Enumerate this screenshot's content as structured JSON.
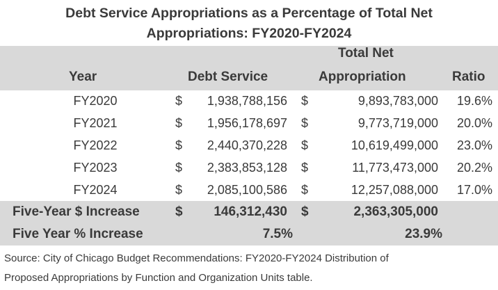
{
  "title": {
    "line1": "Debt Service Appropriations as a Percentage of Total Net",
    "line2": "Appropriations: FY2020-FY2024"
  },
  "headers": {
    "year": "Year",
    "debt_service": "Debt Service",
    "total_net_line1": "Total Net",
    "total_net_line2": "Appropriation",
    "ratio": "Ratio"
  },
  "currency_symbol": "$",
  "rows": [
    {
      "year": "FY2020",
      "debt_service": "1,938,788,156",
      "total_net": "9,893,783,000",
      "ratio": "19.6%"
    },
    {
      "year": "FY2021",
      "debt_service": "1,956,178,697",
      "total_net": "9,773,719,000",
      "ratio": "20.0%"
    },
    {
      "year": "FY2022",
      "debt_service": "2,440,370,228",
      "total_net": "10,619,499,000",
      "ratio": "23.0%"
    },
    {
      "year": "FY2023",
      "debt_service": "2,383,853,128",
      "total_net": "11,773,473,000",
      "ratio": "20.2%"
    },
    {
      "year": "FY2024",
      "debt_service": "2,085,100,586",
      "total_net": "12,257,088,000",
      "ratio": "17.0%"
    }
  ],
  "summary": {
    "dollar_label": "Five-Year $ Increase",
    "dollar_debt": "146,312,430",
    "dollar_net": "2,363,305,000",
    "pct_label": "Five Year % Increase",
    "pct_debt": "7.5%",
    "pct_net": "23.9%"
  },
  "source": {
    "line1": "Source: City of Chicago Budget Recommendations: FY2020-FY2024 Distribution of",
    "line2": "Proposed Appropriations by Function and Organization Units table."
  }
}
